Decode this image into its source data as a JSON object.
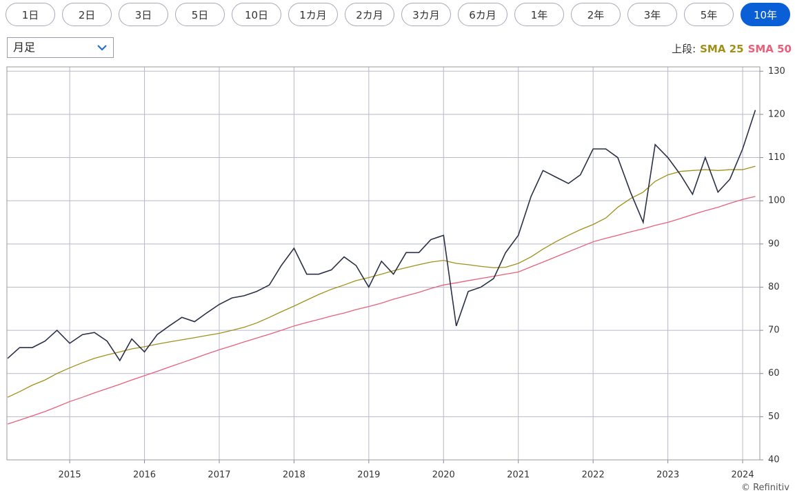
{
  "tabs": [
    "1日",
    "2日",
    "3日",
    "5日",
    "10日",
    "1カ月",
    "2カ月",
    "3カ月",
    "6カ月",
    "1年",
    "2年",
    "3年",
    "5年",
    "10年"
  ],
  "active_tab": "10年",
  "select": "月足",
  "legend_label": "上段:",
  "credit": "© Refinitiv",
  "chart_data": {
    "type": "line",
    "x": [
      2014.17,
      2014.33,
      2014.5,
      2014.67,
      2014.83,
      2015,
      2015.17,
      2015.33,
      2015.5,
      2015.67,
      2015.83,
      2016,
      2016.17,
      2016.33,
      2016.5,
      2016.67,
      2016.83,
      2017,
      2017.17,
      2017.33,
      2017.5,
      2017.67,
      2017.83,
      2018,
      2018.17,
      2018.33,
      2018.5,
      2018.67,
      2018.83,
      2019,
      2019.17,
      2019.33,
      2019.5,
      2019.67,
      2019.83,
      2020,
      2020.17,
      2020.33,
      2020.5,
      2020.67,
      2020.83,
      2021,
      2021.17,
      2021.33,
      2021.5,
      2021.67,
      2021.83,
      2022,
      2022.17,
      2022.33,
      2022.5,
      2022.67,
      2022.83,
      2023,
      2023.17,
      2023.33,
      2023.5,
      2023.67,
      2023.83,
      2024,
      2024.17
    ],
    "series": [
      {
        "color": "#2a2f45",
        "values": [
          63.5,
          66,
          66,
          67.5,
          70,
          67,
          69,
          69.5,
          67.5,
          63,
          68,
          65,
          69,
          71,
          73,
          72,
          74,
          76,
          77.5,
          78,
          79,
          80.5,
          85,
          89,
          83,
          83,
          84,
          87,
          85,
          80,
          86,
          83,
          88,
          88,
          91,
          92,
          71,
          79,
          80,
          82,
          88,
          92,
          101,
          107,
          105.5,
          104,
          106,
          112,
          112,
          110,
          102,
          95,
          113,
          110,
          106,
          101.5,
          110,
          102,
          105,
          112,
          121
        ]
      },
      {
        "name": "SMA 25",
        "color": "#a0901a",
        "values": [
          54.5,
          55.8,
          57.3,
          58.5,
          60,
          61.3,
          62.5,
          63.5,
          64.3,
          65,
          65.7,
          66.2,
          66.8,
          67.3,
          67.8,
          68.3,
          68.8,
          69.3,
          70,
          70.7,
          71.7,
          73,
          74.3,
          75.6,
          77,
          78.3,
          79.5,
          80.5,
          81.5,
          82.2,
          83,
          83.8,
          84.5,
          85.2,
          85.8,
          86.2,
          85.5,
          85.2,
          84.8,
          84.5,
          84.6,
          85.5,
          87,
          88.8,
          90.5,
          92,
          93.3,
          94.5,
          96,
          98.5,
          100.5,
          102,
          104.5,
          106,
          106.8,
          107,
          107.2,
          107,
          107.2,
          107.2,
          108
        ]
      },
      {
        "name": "SMA 50",
        "color": "#e8607a",
        "values": [
          48.3,
          49.2,
          50.2,
          51.2,
          52.3,
          53.5,
          54.5,
          55.5,
          56.5,
          57.5,
          58.5,
          59.5,
          60.5,
          61.5,
          62.5,
          63.5,
          64.5,
          65.5,
          66.4,
          67.3,
          68.2,
          69.1,
          70,
          71,
          71.8,
          72.5,
          73.3,
          74,
          74.8,
          75.5,
          76.3,
          77.2,
          78,
          78.8,
          79.7,
          80.5,
          81,
          81.5,
          82,
          82.5,
          83,
          83.5,
          84.7,
          85.8,
          87,
          88.2,
          89.3,
          90.5,
          91.3,
          92,
          92.8,
          93.5,
          94.3,
          95,
          95.9,
          96.8,
          97.7,
          98.5,
          99.4,
          100.3,
          101
        ]
      }
    ],
    "xlim": [
      2014.16,
      2024.23
    ],
    "ylim": [
      40,
      131
    ],
    "xticks": [
      2015,
      2016,
      2017,
      2018,
      2019,
      2020,
      2021,
      2022,
      2023,
      2024
    ],
    "yticks": [
      40,
      50,
      60,
      70,
      80,
      90,
      100,
      110,
      120,
      130
    ],
    "grid": true
  }
}
